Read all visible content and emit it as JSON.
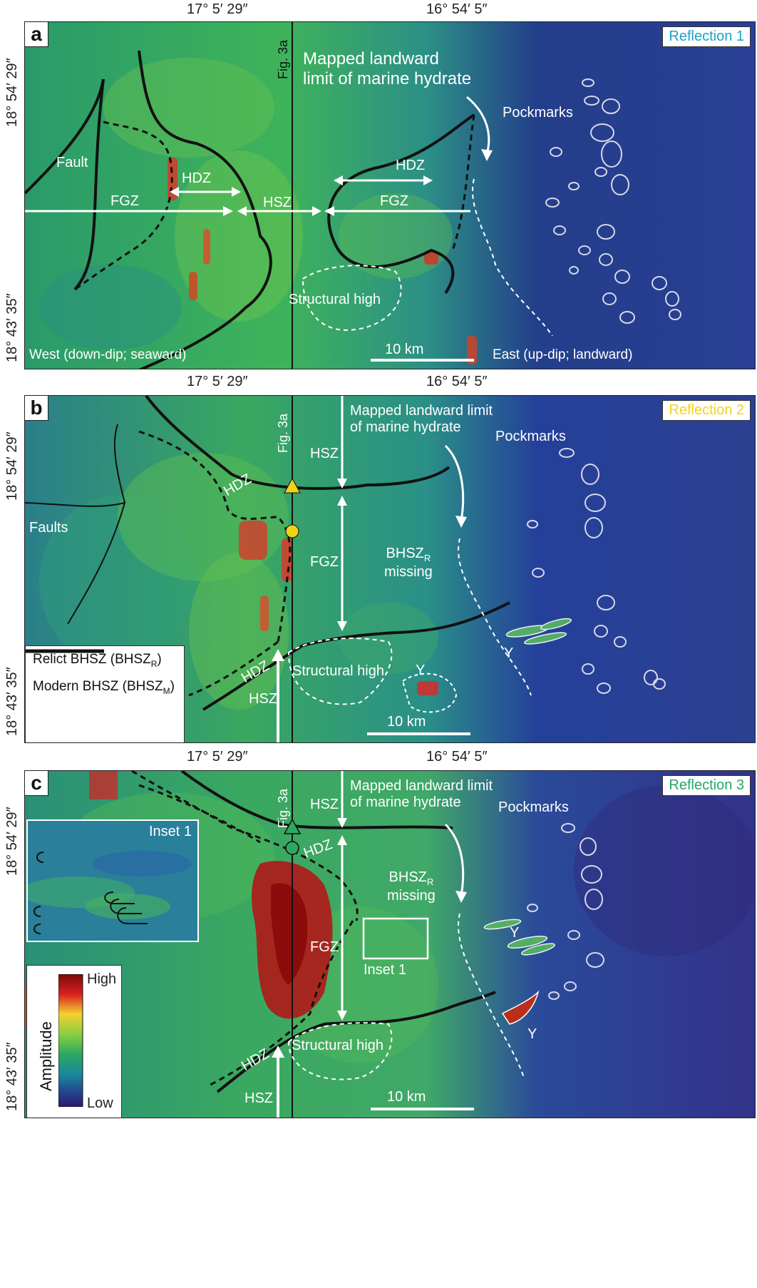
{
  "coords": {
    "lon_left": "17° 5′ 29″",
    "lon_right": "16° 54′ 5″",
    "lat_top": "18° 54′ 29″",
    "lat_bottom": "18° 43′ 35″"
  },
  "panel_a": {
    "letter": "a",
    "reflection": "Reflection 1",
    "reflection_color": "#1aa3c9",
    "fig_ref": "Fig. 3a",
    "hydrate_limit": "Mapped landward\nlimit of marine hydrate",
    "pockmarks": "Pockmarks",
    "fault": "Fault",
    "hdz_left": "HDZ",
    "fgz_left": "FGZ",
    "hsz": "HSZ",
    "hdz_right": "HDZ",
    "fgz_right": "FGZ",
    "structural_high": "Structural high",
    "scale": "10 km",
    "west": "West (down-dip; seaward)",
    "east": "East (up-dip; landward)"
  },
  "panel_b": {
    "letter": "b",
    "reflection": "Reflection 2",
    "reflection_color": "#f2d31b",
    "fig_ref": "Fig. 3a",
    "hydrate_limit": "Mapped landward limit\nof marine hydrate",
    "pockmarks": "Pockmarks",
    "faults": "Faults",
    "hdz_top": "HDZ",
    "hsz_top": "HSZ",
    "fgz": "FGZ",
    "bhszr_missing_1": "BHSZ",
    "bhszr_missing_sub": "R",
    "bhszr_missing_2": "missing",
    "hdz_bottom": "HDZ",
    "hsz_bottom": "HSZ",
    "structural_high": "Structural high",
    "y1": "Y",
    "y2": "Y",
    "scale": "10 km",
    "legend_relict": "Relict BHSZ (BHSZ",
    "legend_relict_sub": "R",
    "legend_modern": "Modern BHSZ (BHSZ",
    "legend_modern_sub": "M"
  },
  "panel_c": {
    "letter": "c",
    "reflection": "Reflection 3",
    "reflection_color": "#23a86a",
    "fig_ref": "Fig. 3a",
    "hydrate_limit": "Mapped landward limit\nof marine hydrate",
    "pockmarks": "Pockmarks",
    "inset_title": "Inset 1",
    "inset_label": "Inset 1",
    "hdz_top": "HDZ",
    "hsz_top": "HSZ",
    "fgz": "FGZ",
    "bhszr_missing_1": "BHSZ",
    "bhszr_missing_sub": "R",
    "bhszr_missing_2": "missing",
    "hdz_bottom": "HDZ",
    "hsz_bottom": "HSZ",
    "structural_high": "Structural high",
    "y1": "Y",
    "y2": "Y",
    "scale": "10 km",
    "colorbar_high": "High",
    "colorbar_low": "Low",
    "colorbar_label": "Amplitude"
  }
}
